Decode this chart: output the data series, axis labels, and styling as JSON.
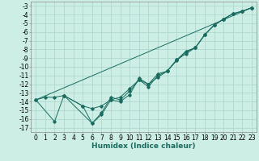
{
  "title": "",
  "xlabel": "Humidex (Indice chaleur)",
  "bg_color": "#cceee4",
  "grid_color": "#aad4cc",
  "line_color": "#1a6b60",
  "xlim": [
    -0.5,
    23.5
  ],
  "ylim": [
    -17.5,
    -2.5
  ],
  "yticks": [
    -3,
    -4,
    -5,
    -6,
    -7,
    -8,
    -9,
    -10,
    -11,
    -12,
    -13,
    -14,
    -15,
    -16,
    -17
  ],
  "xticks": [
    0,
    1,
    2,
    3,
    4,
    5,
    6,
    7,
    8,
    9,
    10,
    11,
    12,
    13,
    14,
    15,
    16,
    17,
    18,
    19,
    20,
    21,
    22,
    23
  ],
  "series": [
    {
      "x": [
        0,
        1,
        2,
        3,
        5,
        6,
        7,
        8,
        9,
        10,
        11,
        12,
        13,
        14,
        15,
        16,
        17,
        18,
        19,
        20,
        21,
        22,
        23
      ],
      "y": [
        -13.8,
        -13.5,
        -13.5,
        -13.3,
        -14.5,
        -16.5,
        -15.3,
        -13.5,
        -13.8,
        -12.8,
        -11.5,
        -12.0,
        -11.2,
        -10.5,
        -9.3,
        -8.3,
        -7.8,
        -6.3,
        -5.2,
        -4.5,
        -3.9,
        -3.6,
        -3.2
      ],
      "markers": true
    },
    {
      "x": [
        0,
        2,
        3,
        5,
        6,
        7,
        8,
        9,
        10,
        11,
        12,
        13,
        14,
        15,
        16,
        17,
        18,
        19,
        20,
        21,
        22,
        23
      ],
      "y": [
        -13.8,
        -16.3,
        -13.3,
        -14.5,
        -14.8,
        -14.5,
        -13.8,
        -13.5,
        -12.5,
        -11.5,
        -12.3,
        -11.0,
        -10.5,
        -9.2,
        -8.5,
        -7.8,
        -6.3,
        -5.2,
        -4.5,
        -3.9,
        -3.6,
        -3.2
      ],
      "markers": true
    },
    {
      "x": [
        3,
        6,
        7,
        8,
        9,
        10,
        11,
        12,
        13,
        14,
        15,
        16,
        17,
        18,
        19,
        20,
        21,
        22,
        23
      ],
      "y": [
        -13.3,
        -16.5,
        -15.5,
        -13.8,
        -14.0,
        -13.2,
        -11.3,
        -12.0,
        -10.8,
        -10.5,
        -9.2,
        -8.2,
        -7.8,
        -6.3,
        -5.2,
        -4.5,
        -3.9,
        -3.6,
        -3.2
      ],
      "markers": true
    },
    {
      "x": [
        0,
        23
      ],
      "y": [
        -13.8,
        -3.2
      ],
      "markers": false
    }
  ]
}
